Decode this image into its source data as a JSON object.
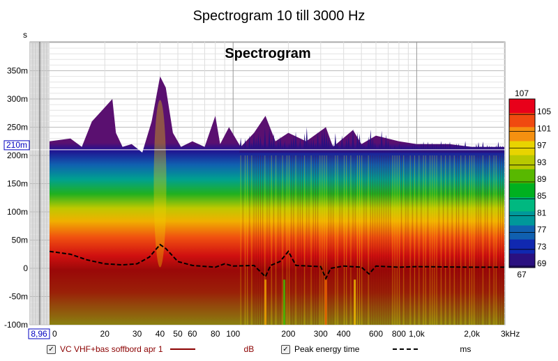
{
  "chart_data": {
    "type": "heatmap",
    "title": "Spectrogram 10 till 3000 Hz",
    "inner_title": "Spectrogram",
    "ylabel": "s",
    "xlabel_unit": "kHz",
    "x_scale": "log",
    "xlim": [
      10,
      3000
    ],
    "ylim_ms": [
      -100,
      400
    ],
    "y_ticks": [
      {
        "v": 350,
        "label": "350m"
      },
      {
        "v": 300,
        "label": "300m"
      },
      {
        "v": 250,
        "label": "250m"
      },
      {
        "v": 200,
        "label": "200m"
      },
      {
        "v": 150,
        "label": "150m"
      },
      {
        "v": 100,
        "label": "100m"
      },
      {
        "v": 50,
        "label": "50m"
      },
      {
        "v": 0,
        "label": "0"
      },
      {
        "v": -50,
        "label": "-50m"
      },
      {
        "v": -100,
        "label": "-100m"
      }
    ],
    "x_ticks": [
      {
        "v": 20,
        "label": "20"
      },
      {
        "v": 30,
        "label": "30"
      },
      {
        "v": 40,
        "label": "40"
      },
      {
        "v": 50,
        "label": "50"
      },
      {
        "v": 60,
        "label": "60"
      },
      {
        "v": 80,
        "label": "80"
      },
      {
        "v": 100,
        "label": "100"
      },
      {
        "v": 200,
        "label": "200"
      },
      {
        "v": 300,
        "label": "300"
      },
      {
        "v": 400,
        "label": "400"
      },
      {
        "v": 600,
        "label": "600"
      },
      {
        "v": 800,
        "label": "800"
      },
      {
        "v": 1000,
        "label": "1,0k"
      },
      {
        "v": 2000,
        "label": "2,0k"
      },
      {
        "v": 3000,
        "label": "3kHz"
      }
    ],
    "x_start_label": "0",
    "cursor_x_label": "8,96",
    "cursor_y_label": "210m",
    "cursor_y_ms": 210,
    "colorbar": {
      "min_label": "67",
      "max_label": "107",
      "ticks": [
        "105",
        "101",
        "97",
        "93",
        "89",
        "85",
        "81",
        "77",
        "73",
        "69"
      ],
      "colors": [
        "#e8001a",
        "#f04a10",
        "#f59010",
        "#e8d400",
        "#b8c800",
        "#58b800",
        "#00b020",
        "#00b880",
        "#00989a",
        "#1060b0",
        "#1028b0",
        "#2a1080"
      ]
    },
    "top_envelope_ms": [
      [
        10,
        225
      ],
      [
        13,
        230
      ],
      [
        15,
        215
      ],
      [
        17,
        260
      ],
      [
        20,
        285
      ],
      [
        22,
        300
      ],
      [
        23,
        240
      ],
      [
        25,
        215
      ],
      [
        28,
        220
      ],
      [
        32,
        205
      ],
      [
        36,
        260
      ],
      [
        40,
        340
      ],
      [
        43,
        320
      ],
      [
        47,
        240
      ],
      [
        52,
        215
      ],
      [
        60,
        225
      ],
      [
        70,
        215
      ],
      [
        80,
        270
      ],
      [
        85,
        220
      ],
      [
        95,
        250
      ],
      [
        110,
        215
      ],
      [
        130,
        240
      ],
      [
        150,
        270
      ],
      [
        170,
        225
      ],
      [
        200,
        240
      ],
      [
        250,
        225
      ],
      [
        320,
        250
      ],
      [
        350,
        215
      ],
      [
        450,
        245
      ],
      [
        500,
        220
      ],
      [
        600,
        235
      ],
      [
        800,
        225
      ],
      [
        1000,
        220
      ],
      [
        1500,
        220
      ],
      [
        2000,
        215
      ],
      [
        3000,
        215
      ]
    ],
    "peak_energy_time_ms": [
      [
        10,
        30
      ],
      [
        13,
        25
      ],
      [
        16,
        15
      ],
      [
        20,
        8
      ],
      [
        25,
        6
      ],
      [
        30,
        8
      ],
      [
        35,
        20
      ],
      [
        40,
        42
      ],
      [
        43,
        35
      ],
      [
        50,
        12
      ],
      [
        60,
        5
      ],
      [
        80,
        2
      ],
      [
        90,
        8
      ],
      [
        100,
        4
      ],
      [
        130,
        5
      ],
      [
        150,
        -15
      ],
      [
        160,
        5
      ],
      [
        180,
        12
      ],
      [
        200,
        30
      ],
      [
        220,
        5
      ],
      [
        300,
        3
      ],
      [
        320,
        -18
      ],
      [
        340,
        0
      ],
      [
        400,
        4
      ],
      [
        500,
        2
      ],
      [
        550,
        -10
      ],
      [
        600,
        4
      ],
      [
        800,
        2
      ],
      [
        1000,
        3
      ],
      [
        2000,
        2
      ],
      [
        3000,
        2
      ]
    ],
    "legend": [
      {
        "label": "VC VHF+bas soffbord apr 1",
        "unit": "dB",
        "color": "#8b0000",
        "checked": true
      },
      {
        "label": "Peak energy time",
        "unit": "ms",
        "color": "#000000",
        "style": "dashed",
        "checked": true
      }
    ]
  }
}
